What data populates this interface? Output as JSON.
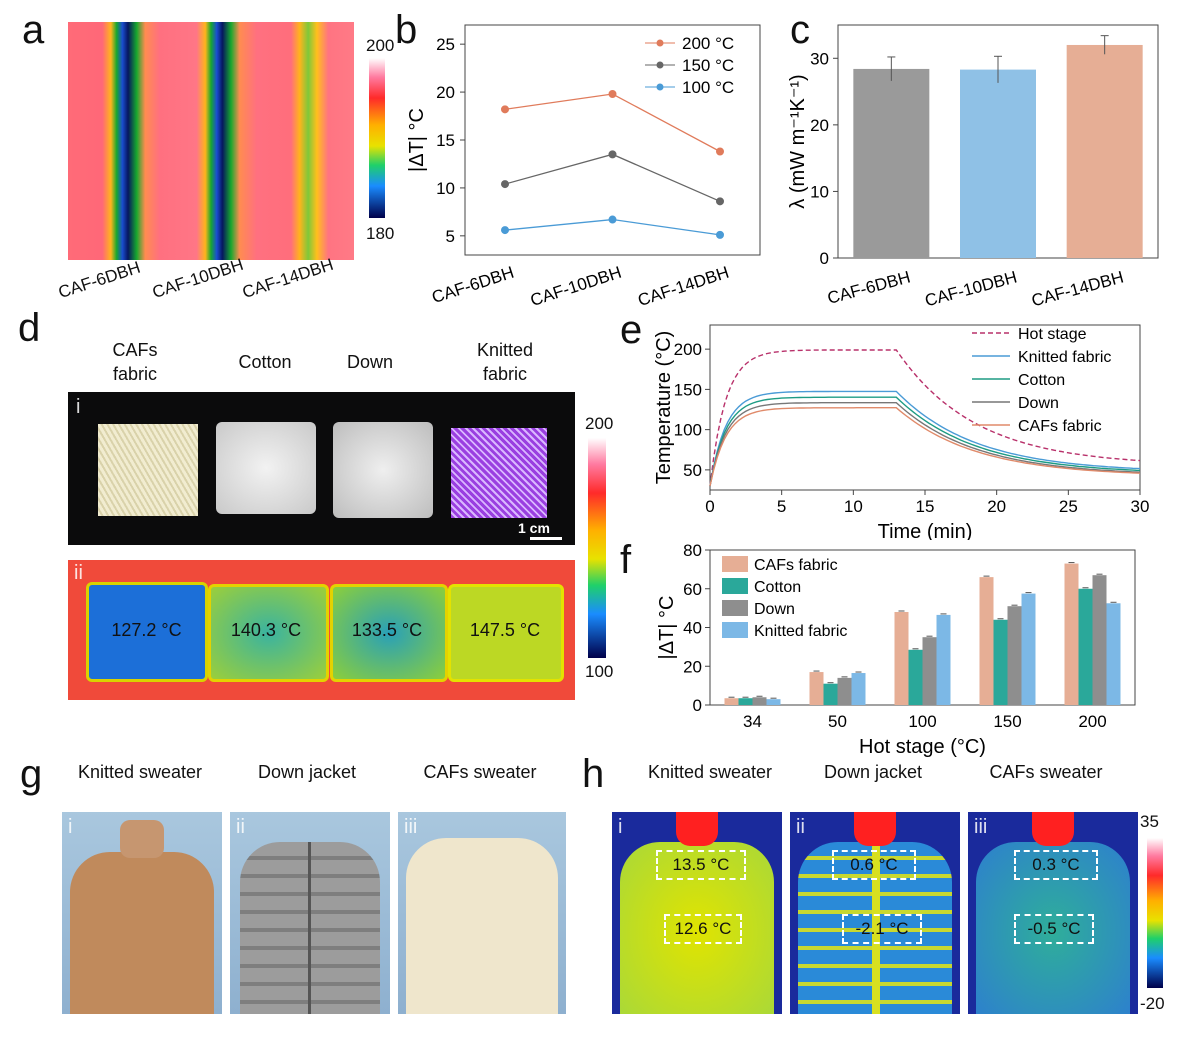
{
  "panels": {
    "a": {
      "label": "a",
      "xticks": [
        "CAF-6DBH",
        "CAF-10DBH",
        "CAF-14DBH"
      ],
      "colorbar": [
        "200",
        "180"
      ]
    },
    "b": {
      "label": "b",
      "ylabel": "|ΔT| °C",
      "legend": [
        "200 °C",
        "150 °C",
        "100 °C"
      ]
    },
    "c": {
      "label": "c",
      "ylabel": "λ (mW m⁻¹K⁻¹)"
    },
    "d": {
      "label": "d",
      "samples": [
        "CAFs fabric",
        "Cotton",
        "Down",
        "Knitted fabric"
      ],
      "scale_bar": "1 cm",
      "sub_i": "i",
      "sub_ii": "ii",
      "temps": [
        "127.2 °C",
        "140.3 °C",
        "133.5 °C",
        "147.5 °C"
      ],
      "colorbar": [
        "200",
        "100"
      ]
    },
    "e": {
      "label": "e",
      "xlabel": "Time (min)",
      "ylabel": "Temperature (°C)",
      "legend": [
        "Hot stage",
        "Knitted fabric",
        "Cotton",
        "Down",
        "CAFs fabric"
      ]
    },
    "f": {
      "label": "f",
      "xlabel": "Hot stage (°C)",
      "ylabel": "|ΔT| °C",
      "legend": [
        "CAFs fabric",
        "Cotton",
        "Down",
        "Knitted fabric"
      ]
    },
    "g": {
      "label": "g",
      "items": [
        {
          "title": "Knitted sweater",
          "roman": "i"
        },
        {
          "title": "Down jacket",
          "roman": "ii"
        },
        {
          "title": "CAFs sweater",
          "roman": "iii"
        }
      ]
    },
    "h": {
      "label": "h",
      "items": [
        {
          "title": "Knitted sweater",
          "roman": "i",
          "t1": "13.5 °C",
          "t2": "12.6 °C"
        },
        {
          "title": "Down jacket",
          "roman": "ii",
          "t1": "0.6 °C",
          "t2": "-2.1 °C"
        },
        {
          "title": "CAFs sweater",
          "roman": "iii",
          "t1": "0.3 °C",
          "t2": "-0.5 °C"
        }
      ],
      "colorbar": [
        "35",
        "-20"
      ]
    }
  },
  "chart_data": [
    {
      "id": "b",
      "type": "line",
      "categories": [
        "CAF-6DBH",
        "CAF-10DBH",
        "CAF-14DBH"
      ],
      "series": [
        {
          "name": "200 °C",
          "values": [
            18.2,
            19.8,
            13.8
          ],
          "color": "#e07b5b"
        },
        {
          "name": "150 °C",
          "values": [
            10.4,
            13.5,
            8.6
          ],
          "color": "#666666"
        },
        {
          "name": "100 °C",
          "values": [
            5.6,
            6.7,
            5.1
          ],
          "color": "#4a9bd6"
        }
      ],
      "ylim": [
        3,
        27
      ],
      "yticks": [
        5,
        10,
        15,
        20,
        25
      ]
    },
    {
      "id": "c",
      "type": "bar",
      "categories": [
        "CAF-6DBH",
        "CAF-10DBH",
        "CAF-14DBH"
      ],
      "values": [
        28.4,
        28.3,
        32.0
      ],
      "errors": [
        1.8,
        2.0,
        1.4
      ],
      "colors": [
        "#9a9a9a",
        "#8fc1e6",
        "#e6ae95"
      ],
      "ylim": [
        0,
        35
      ],
      "yticks": [
        0,
        10,
        20,
        30
      ]
    },
    {
      "id": "e",
      "type": "line",
      "xlim": [
        0,
        30
      ],
      "ylim": [
        25,
        230
      ],
      "xticks": [
        0,
        5,
        10,
        15,
        20,
        25,
        30
      ],
      "yticks": [
        50,
        100,
        150,
        200
      ],
      "series": [
        {
          "name": "Hot stage",
          "color": "#b8306a",
          "dashed": true,
          "plateau": 199,
          "end": 55
        },
        {
          "name": "Knitted fabric",
          "color": "#4a9bd6",
          "plateau": 147.5,
          "end": 47
        },
        {
          "name": "Cotton",
          "color": "#1e9c84",
          "plateau": 140.3,
          "end": 45
        },
        {
          "name": "Down",
          "color": "#777777",
          "plateau": 133.5,
          "end": 43
        },
        {
          "name": "CAFs fabric",
          "color": "#e08a6a",
          "plateau": 127.2,
          "end": 42
        }
      ]
    },
    {
      "id": "f",
      "type": "bar",
      "categories": [
        "34",
        "50",
        "100",
        "150",
        "200"
      ],
      "series": [
        {
          "name": "CAFs fabric",
          "values": [
            3.5,
            17,
            48,
            66,
            73
          ],
          "color": "#e6ae95"
        },
        {
          "name": "Cotton",
          "values": [
            3.5,
            11,
            28.5,
            44,
            60
          ],
          "color": "#2aa89a"
        },
        {
          "name": "Down",
          "values": [
            4,
            14,
            35,
            51,
            67
          ],
          "color": "#8e8e8e"
        },
        {
          "name": "Knitted fabric",
          "values": [
            3,
            16.5,
            46.5,
            57.5,
            52.5
          ],
          "color": "#7cb8e6"
        }
      ],
      "ylim": [
        0,
        80
      ],
      "yticks": [
        0,
        20,
        40,
        60,
        80
      ]
    }
  ]
}
